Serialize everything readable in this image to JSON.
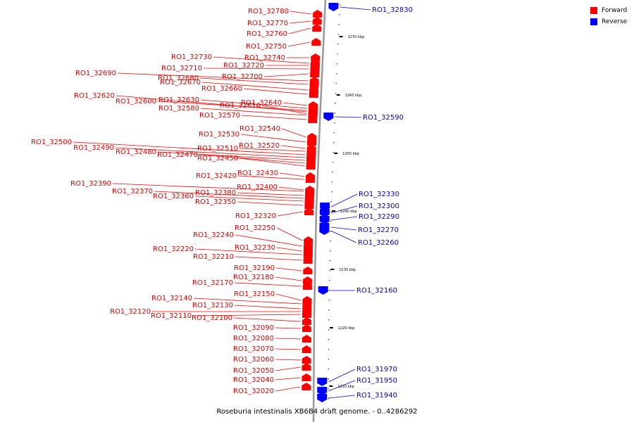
{
  "caption": "Roseburia intestinalis XB6B4 draft genome. - 0..4286292",
  "legend": [
    {
      "label": "Forward",
      "color": "#ff0000"
    },
    {
      "label": "Reverse",
      "color": "#0000ff"
    }
  ],
  "colors": {
    "forward": "#ff0000",
    "forward_label": "#dd0000",
    "reverse": "#0000ff",
    "reverse_label": "#0000cc",
    "backbone": "#999999"
  },
  "ticks": [
    "1270 kbp",
    "1260 kbp",
    "1250 kbp",
    "1240 kbp",
    "1230 kbp",
    "1220 kbp",
    "1210 kbp"
  ],
  "forward_genes": [
    "RO1_32780",
    "RO1_32770",
    "RO1_32760",
    "RO1_32750",
    "RO1_32740",
    "RO1_32730",
    "RO1_32720",
    "RO1_32710",
    "RO1_32700",
    "RO1_32690",
    "RO1_32680",
    "RO1_32670",
    "RO1_32660",
    "RO1_32640",
    "RO1_32630",
    "RO1_32620",
    "RO1_32610",
    "RO1_32600",
    "RO1_32580",
    "RO1_32570",
    "RO1_32540",
    "RO1_32530",
    "RO1_32520",
    "RO1_32510",
    "RO1_32500",
    "RO1_32490",
    "RO1_32480",
    "RO1_32470",
    "RO1_32450",
    "RO1_32430",
    "RO1_32420",
    "RO1_32400",
    "RO1_32390",
    "RO1_32380",
    "RO1_32370",
    "RO1_32360",
    "RO1_32350",
    "RO1_32320",
    "RO1_32250",
    "RO1_32240",
    "RO1_32230",
    "RO1_32220",
    "RO1_32210",
    "RO1_32190",
    "RO1_32180",
    "RO1_32170",
    "RO1_32150",
    "RO1_32140",
    "RO1_32130",
    "RO1_32120",
    "RO1_32110",
    "RO1_32100",
    "RO1_32090",
    "RO1_32080",
    "RO1_32070",
    "RO1_32060",
    "RO1_32050",
    "RO1_32040",
    "RO1_32020"
  ],
  "reverse_genes": [
    "RO1_32830",
    "RO1_32590",
    "RO1_32330",
    "RO1_32300",
    "RO1_32290",
    "RO1_32270",
    "RO1_32260",
    "RO1_32160",
    "RO1_31970",
    "RO1_31950",
    "RO1_31940"
  ]
}
